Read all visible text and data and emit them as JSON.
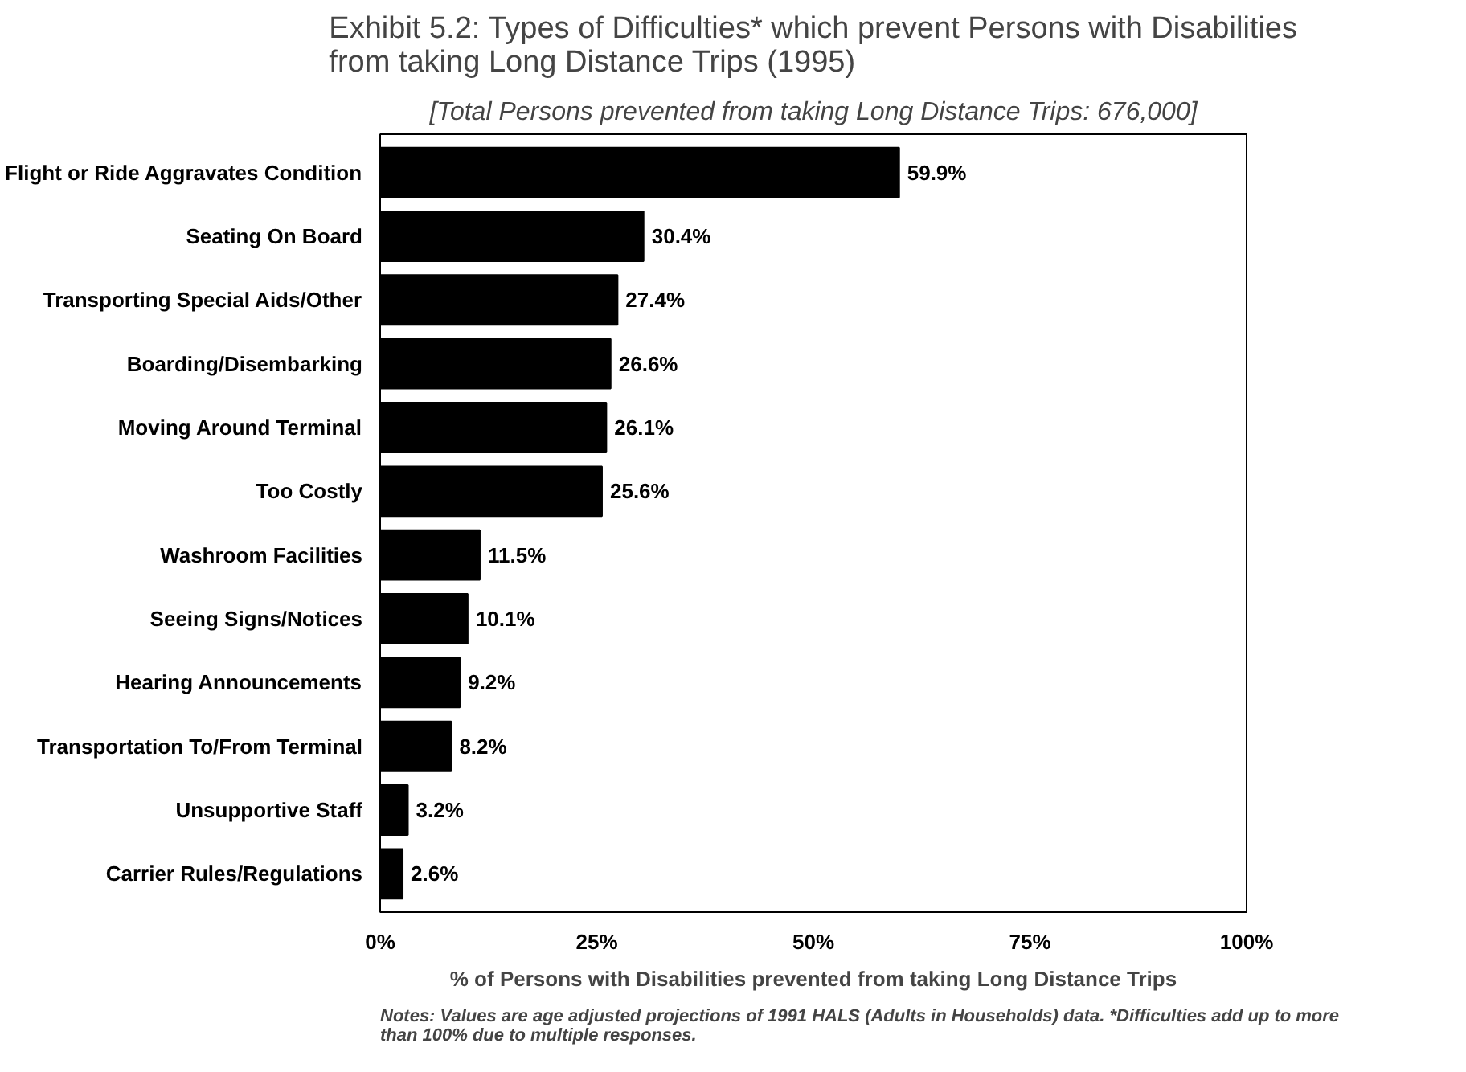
{
  "chart_data": {
    "type": "bar",
    "orientation": "horizontal",
    "title": "Exhibit 5.2: Types of Difficulties* which prevent Persons with Disabilities from taking Long Distance Trips (1995)",
    "subtitle": "[Total Persons prevented from taking Long Distance Trips: 676,000]",
    "xlabel": "% of Persons with Disabilities prevented from taking Long Distance Trips",
    "categories": [
      "Flight or Ride Aggravates Condition",
      "Seating On Board",
      "Transporting Special Aids/Other",
      "Boarding/Disembarking",
      "Moving Around Terminal",
      "Too Costly",
      "Washroom Facilities",
      "Seeing Signs/Notices",
      "Hearing Announcements",
      "Transportation To/From Terminal",
      "Unsupportive Staff",
      "Carrier Rules/Regulations"
    ],
    "values": [
      59.9,
      30.4,
      27.4,
      26.6,
      26.1,
      25.6,
      11.5,
      10.1,
      9.2,
      8.2,
      3.2,
      2.6
    ],
    "value_labels": [
      "59.9%",
      "30.4%",
      "27.4%",
      "26.6%",
      "26.1%",
      "25.6%",
      "11.5%",
      "10.1%",
      "9.2%",
      "8.2%",
      "3.2%",
      "2.6%"
    ],
    "color": "#000000",
    "xlim": [
      0,
      100
    ],
    "xticks": [
      {
        "value": 0,
        "label": "0%"
      },
      {
        "value": 25,
        "label": "25%"
      },
      {
        "value": 50,
        "label": "50%"
      },
      {
        "value": 75,
        "label": "75%"
      },
      {
        "value": 100,
        "label": "100%"
      }
    ],
    "grid": false,
    "annotations": [
      "Notes: Values are age adjusted projections of 1991 HALS (Adults in Households) data.  *Difficulties add up to more than 100% due  to multiple responses."
    ]
  }
}
